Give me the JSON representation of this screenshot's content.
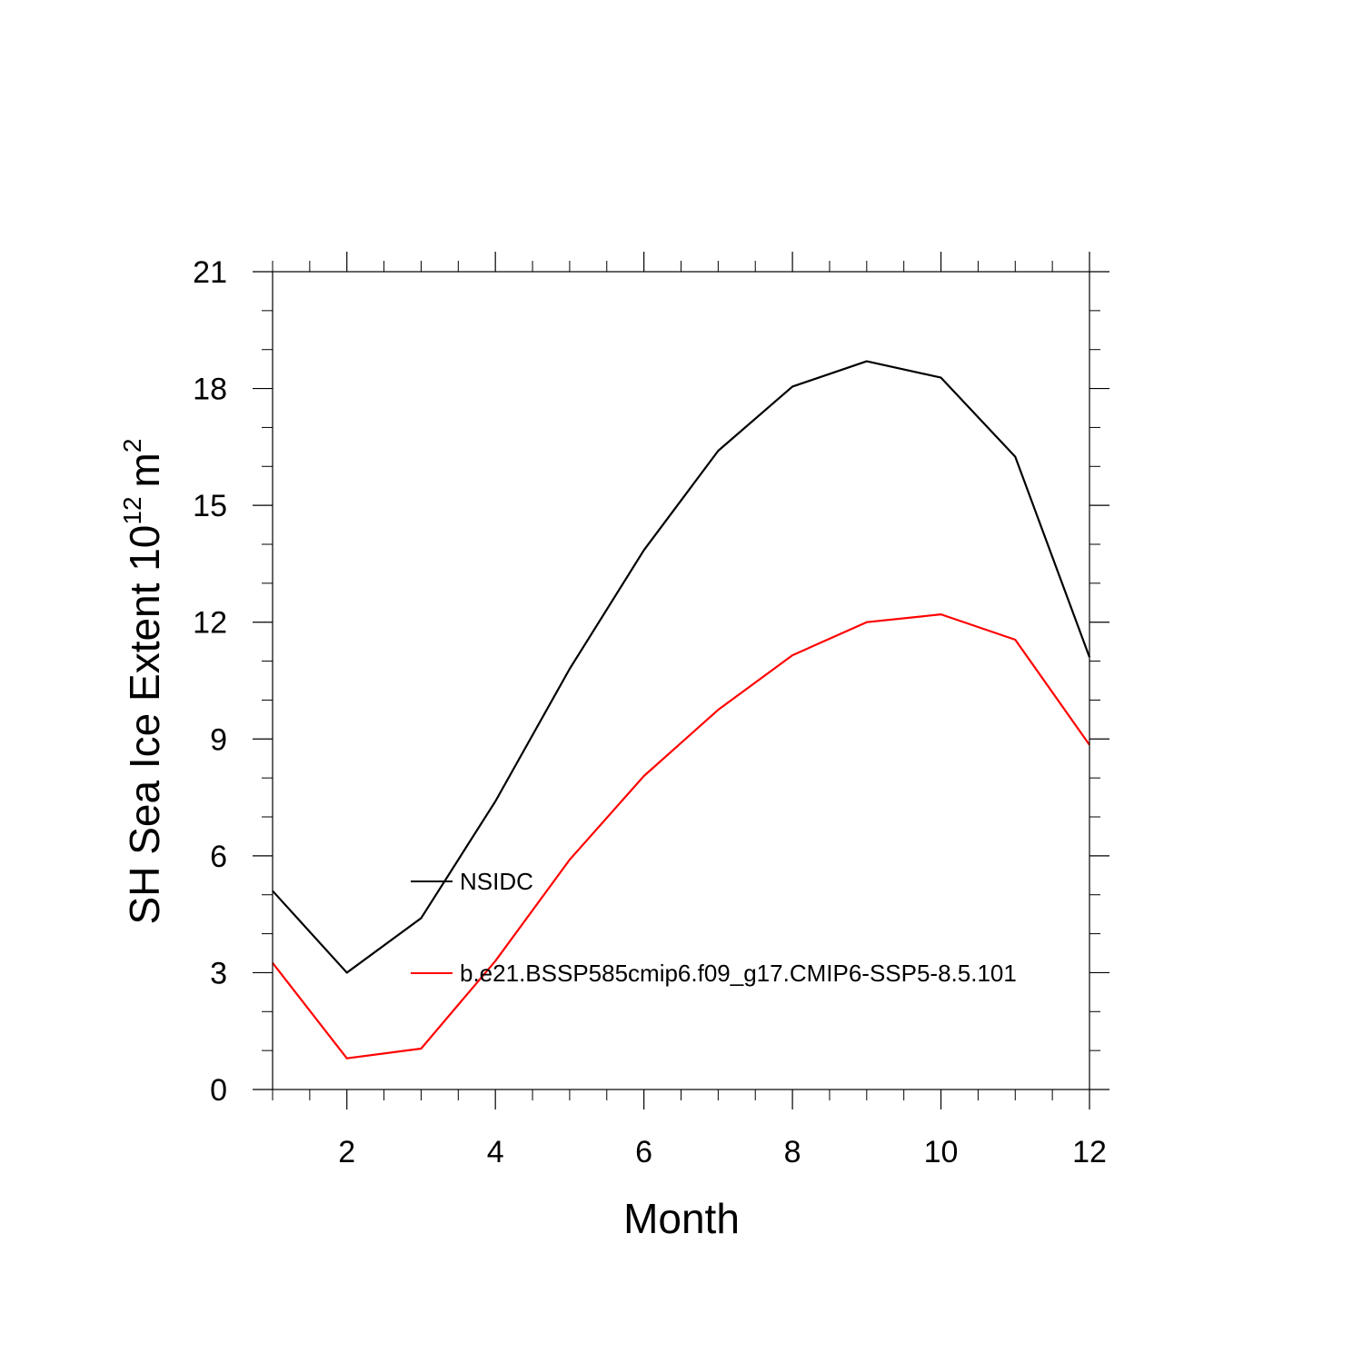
{
  "chart_data": {
    "type": "line",
    "title": "",
    "xlabel": "Month",
    "ylabel": {
      "text": "SH Sea Ice Extent 10",
      "exponent": "12",
      "unit": "m",
      "unit_exponent": "2"
    },
    "xlim": [
      1,
      12
    ],
    "ylim": [
      0,
      21
    ],
    "x_major_ticks": [
      2,
      4,
      6,
      8,
      10,
      12
    ],
    "y_major_ticks": [
      0,
      3,
      6,
      9,
      12,
      15,
      18,
      21
    ],
    "grid": false,
    "legend_position": "inside-lower-left",
    "x": [
      1,
      2,
      3,
      4,
      5,
      6,
      7,
      8,
      9,
      10,
      11,
      12
    ],
    "series": [
      {
        "name": "NSIDC",
        "color": "#000000",
        "values": [
          5.1,
          3.0,
          4.4,
          7.4,
          10.8,
          13.85,
          16.4,
          18.05,
          18.7,
          18.28,
          16.25,
          11.1
        ]
      },
      {
        "name": "b.e21.BSSP585cmip6.f09_g17.CMIP6-SSP5-8.5.101",
        "color": "#ff0000",
        "values": [
          3.25,
          0.8,
          1.05,
          3.3,
          5.9,
          8.05,
          9.75,
          11.15,
          12.0,
          12.2,
          11.55,
          8.85
        ]
      }
    ]
  }
}
